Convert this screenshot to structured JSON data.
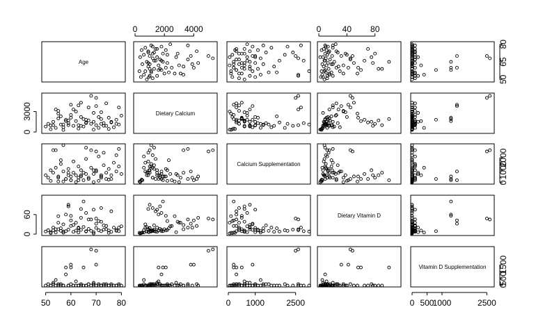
{
  "chart_data": {
    "type": "scatter",
    "variables": [
      {
        "name": "Age",
        "label": "Age",
        "range": [
          49,
          81
        ],
        "ticks": [
          50,
          65,
          80
        ],
        "tick_labels": [
          "50",
          "65",
          "80"
        ]
      },
      {
        "name": "Dietary Calcium",
        "label": "Dietary Calcium",
        "range": [
          0,
          5500
        ],
        "ticks": [
          0,
          1000,
          2000,
          3000,
          4000
        ],
        "tick_labels": [
          "0",
          "",
          "2000",
          "3000",
          "4000"
        ]
      },
      {
        "name": "Calcium Supplementation",
        "label": "Calcium Supplementation",
        "range": [
          0,
          3000
        ],
        "ticks": [
          0,
          500,
          1000,
          1500,
          2000,
          2500
        ],
        "tick_labels": [
          "0",
          "",
          "1000",
          "",
          "2000",
          "2500"
        ]
      },
      {
        "name": "Dietary Vitamin D",
        "label": "Dietary Vitamin D",
        "range": [
          0,
          115
        ],
        "ticks": [
          0,
          20,
          40,
          60,
          80
        ],
        "tick_labels": [
          "0",
          "",
          "40",
          "60",
          "80"
        ]
      },
      {
        "name": "Vitamin D Supplementation",
        "label": "Vitamin D Supplementation",
        "range": [
          0,
          2700
        ],
        "ticks": [
          0,
          500,
          1000,
          1500,
          2000,
          2500
        ],
        "tick_labels": [
          "0",
          "500",
          "1000",
          "1500",
          "2000",
          "2500"
        ]
      }
    ],
    "axes": {
      "top": [
        {
          "variable": 1,
          "ticks": [
            0,
            2000,
            4000
          ],
          "tick_labels": [
            "0",
            "2000",
            "4000"
          ]
        },
        {
          "variable": 3,
          "ticks": [
            0,
            40,
            80
          ],
          "tick_labels": [
            "0",
            "40",
            "80"
          ]
        }
      ],
      "bottom": [
        {
          "variable": 0,
          "ticks": [
            50,
            60,
            70,
            80
          ],
          "tick_labels": [
            "50",
            "60",
            "70",
            "80"
          ]
        },
        {
          "variable": 2,
          "ticks": [
            0,
            1000,
            2500
          ],
          "tick_labels": [
            "0",
            "1000",
            "2500"
          ]
        },
        {
          "variable": 4,
          "ticks": [
            0,
            500,
            1000,
            2500
          ],
          "tick_labels": [
            "0",
            "500",
            "1000",
            "2500"
          ]
        }
      ],
      "left": [
        {
          "variable": 1,
          "ticks": [
            0,
            3000
          ],
          "tick_labels": [
            "0",
            "3000"
          ]
        },
        {
          "variable": 3,
          "ticks": [
            0,
            60
          ],
          "tick_labels": [
            "0",
            "60"
          ]
        }
      ],
      "right": [
        {
          "variable": 0,
          "ticks": [
            50,
            65,
            80
          ],
          "tick_labels": [
            "50",
            "65",
            "80"
          ]
        },
        {
          "variable": 2,
          "ticks": [
            0,
            1000,
            2000
          ],
          "tick_labels": [
            "0",
            "1000",
            "2000"
          ]
        },
        {
          "variable": 4,
          "ticks": [
            0,
            500,
            1500
          ],
          "tick_labels": [
            "0",
            "500",
            "1500"
          ]
        }
      ]
    },
    "points": [
      [
        50,
        800,
        600,
        8,
        0
      ],
      [
        51,
        1200,
        400,
        12,
        100
      ],
      [
        52,
        950,
        1000,
        6,
        0
      ],
      [
        53,
        1500,
        800,
        20,
        200
      ],
      [
        54,
        600,
        1200,
        5,
        400
      ],
      [
        55,
        2000,
        500,
        15,
        0
      ],
      [
        56,
        1100,
        1500,
        10,
        100
      ],
      [
        57,
        700,
        900,
        30,
        0
      ],
      [
        58,
        1800,
        300,
        9,
        800
      ],
      [
        59,
        1300,
        1100,
        14,
        0
      ],
      [
        60,
        2500,
        200,
        25,
        100
      ],
      [
        61,
        900,
        1700,
        7,
        0
      ],
      [
        62,
        1600,
        600,
        11,
        300
      ],
      [
        63,
        1000,
        1300,
        18,
        0
      ],
      [
        64,
        2200,
        1000,
        13,
        100
      ],
      [
        65,
        800,
        800,
        22,
        0
      ],
      [
        66,
        1400,
        1900,
        8,
        0
      ],
      [
        67,
        1700,
        400,
        16,
        100
      ],
      [
        68,
        1200,
        1200,
        10,
        0
      ],
      [
        69,
        2800,
        700,
        6,
        200
      ],
      [
        70,
        1000,
        1000,
        19,
        0
      ],
      [
        71,
        600,
        2100,
        12,
        100
      ],
      [
        72,
        1900,
        500,
        9,
        0
      ],
      [
        73,
        1300,
        1400,
        27,
        100
      ],
      [
        74,
        900,
        800,
        15,
        0
      ],
      [
        75,
        2100,
        1100,
        11,
        0
      ],
      [
        76,
        1500,
        600,
        7,
        100
      ],
      [
        77,
        700,
        1600,
        20,
        0
      ],
      [
        78,
        1800,
        900,
        13,
        0
      ],
      [
        79,
        1100,
        1300,
        9,
        100
      ],
      [
        80,
        2400,
        700,
        24,
        0
      ],
      [
        52,
        400,
        150,
        3,
        0
      ],
      [
        57,
        300,
        100,
        4,
        0
      ],
      [
        63,
        500,
        200,
        5,
        0
      ],
      [
        69,
        350,
        50,
        2,
        0
      ],
      [
        75,
        450,
        250,
        4,
        0
      ],
      [
        55,
        3100,
        400,
        35,
        100
      ],
      [
        61,
        3300,
        800,
        28,
        0
      ],
      [
        67,
        3600,
        300,
        45,
        100
      ],
      [
        72,
        2900,
        600,
        38,
        0
      ],
      [
        64,
        4300,
        500,
        50,
        0
      ],
      [
        60,
        4000,
        200,
        42,
        1500
      ],
      [
        70,
        3800,
        900,
        32,
        1500
      ],
      [
        57,
        1100,
        3000,
        8,
        0
      ],
      [
        53,
        1000,
        2600,
        12,
        100
      ],
      [
        78,
        1200,
        2200,
        10,
        0
      ],
      [
        73,
        900,
        2400,
        14,
        0
      ],
      [
        66,
        1300,
        2800,
        9,
        0
      ],
      [
        55,
        2700,
        100,
        55,
        0
      ],
      [
        71,
        2200,
        150,
        40,
        0
      ],
      [
        62,
        3000,
        50,
        35,
        0
      ],
      [
        59,
        1700,
        600,
        85,
        0
      ],
      [
        76,
        1400,
        300,
        70,
        0
      ],
      [
        65,
        1900,
        200,
        100,
        1300
      ],
      [
        58,
        1600,
        300,
        60,
        1300
      ],
      [
        60,
        2100,
        500,
        56,
        1300
      ],
      [
        68,
        5300,
        2600,
        45,
        2600
      ],
      [
        70,
        5000,
        2500,
        48,
        2500
      ],
      [
        79,
        3600,
        2700,
        20,
        0
      ],
      [
        54,
        3300,
        2600,
        15,
        0
      ],
      [
        63,
        3900,
        400,
        20,
        0
      ],
      [
        74,
        4200,
        300,
        25,
        100
      ],
      [
        56,
        2300,
        1800,
        18,
        0
      ],
      [
        69,
        1500,
        1000,
        75,
        100
      ],
      [
        66,
        1800,
        700,
        65,
        0
      ],
      [
        72,
        1200,
        400,
        80,
        0
      ],
      [
        59,
        1000,
        800,
        90,
        0
      ],
      [
        64,
        900,
        600,
        77,
        0
      ]
    ]
  }
}
